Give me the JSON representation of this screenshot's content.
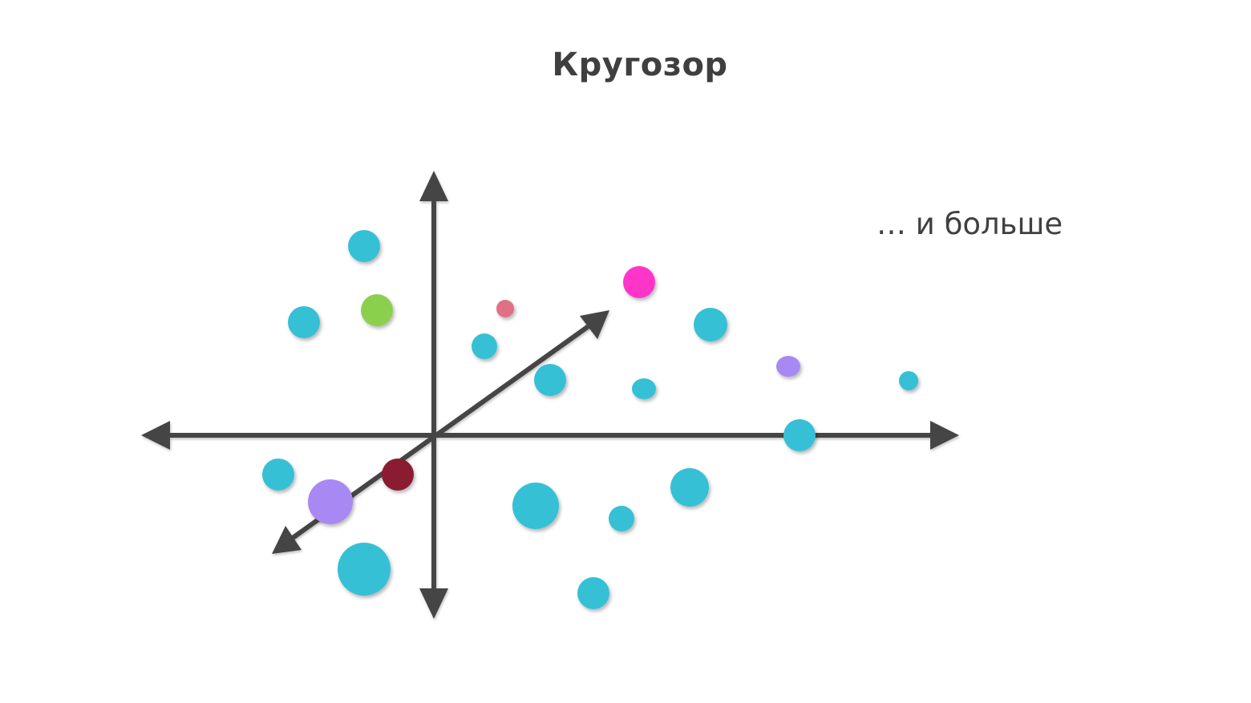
{
  "slide": {
    "title": "Кругозор",
    "note": "… и больше"
  },
  "colors": {
    "background": "#ffffff",
    "title": "#3f3f3f",
    "note": "#404040",
    "axis": "#444444",
    "dot_cyan": "#36c0d6",
    "dot_green": "#8ccf4d",
    "dot_magenta": "#ff36c9",
    "dot_pink": "#e07085",
    "dot_purple": "#a888f2",
    "dot_dark_red": "#8a1a33"
  },
  "icons": [
    "arrow-up-icon",
    "arrow-down-icon",
    "arrow-left-icon",
    "arrow-right-icon",
    "arrow-diagonal-up-right-icon",
    "arrow-diagonal-down-left-icon"
  ],
  "dot_colors": [
    "dot_cyan",
    "dot_cyan",
    "dot_green",
    "dot_pink",
    "dot_cyan",
    "dot_magenta",
    "dot_cyan",
    "dot_cyan",
    "dot_cyan",
    "dot_purple",
    "dot_cyan",
    "dot_cyan",
    "dot_cyan",
    "dot_dark_red",
    "dot_purple",
    "dot_cyan",
    "dot_cyan",
    "dot_cyan",
    "dot_cyan",
    "dot_cyan"
  ]
}
